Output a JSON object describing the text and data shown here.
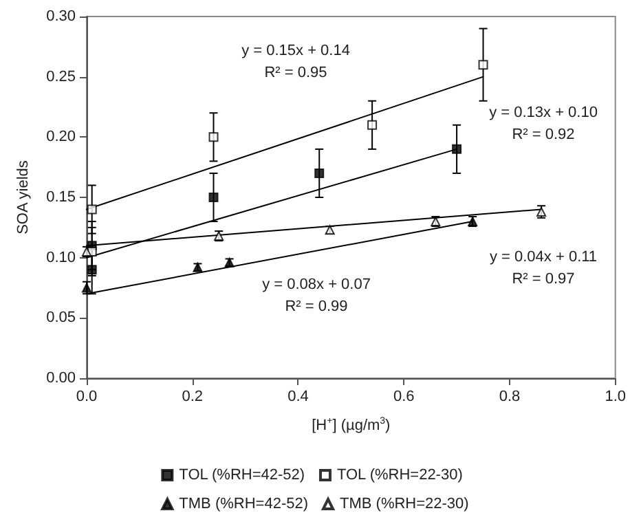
{
  "chart_data": {
    "type": "scatter",
    "xlabel": "[H$^{+}$] (µg/m$^{3}$)",
    "ylabel": "SOA yields",
    "xlim": [
      0,
      1
    ],
    "xticks": [
      {
        "value": 0,
        "label": "0.0"
      },
      {
        "value": 0.2,
        "label": "0.2"
      },
      {
        "value": 0.4,
        "label": "0.4"
      },
      {
        "value": 0.6,
        "label": "0.6"
      },
      {
        "value": 0.8,
        "label": "0.8"
      },
      {
        "value": 1,
        "label": "1.0"
      }
    ],
    "ylim": [
      0,
      0.3
    ],
    "yticks": [
      {
        "value": 0,
        "label": "0.00"
      },
      {
        "value": 0.05,
        "label": "0.05"
      },
      {
        "value": 0.1,
        "label": "0.10"
      },
      {
        "value": 0.15,
        "label": "0.15"
      },
      {
        "value": 0.2,
        "label": "0.20"
      },
      {
        "value": 0.25,
        "label": "0.25"
      },
      {
        "value": 0.3,
        "label": "0.30"
      }
    ],
    "grid": false,
    "legend": "bottom",
    "series": [
      {
        "name": "TOL (%RH=42-52)",
        "marker": "square",
        "color": "#000000",
        "x": [
          0.01,
          0.01,
          0.24,
          0.44,
          0.7
        ],
        "values": [
          0.11,
          0.09,
          0.15,
          0.17,
          0.19
        ],
        "errors": [
          0.02,
          0.02,
          0.02,
          0.02,
          0.02
        ]
      },
      {
        "name": "TOL (%RH=22-30)",
        "marker": "square",
        "color": "#ffffff",
        "x": [
          0.01,
          0.01,
          0.24,
          0.54,
          0.75
        ],
        "values": [
          0.14,
          0.105,
          0.2,
          0.21,
          0.26
        ],
        "errors": [
          0.02,
          0.02,
          0.02,
          0.02,
          0.03
        ]
      },
      {
        "name": "TMB (%RH=42-52)",
        "marker": "triangle",
        "color": "#000000",
        "x": [
          0.0,
          0.21,
          0.27,
          0.73
        ],
        "values": [
          0.075,
          0.092,
          0.096,
          0.13
        ],
        "errors": [
          0.005,
          0.003,
          0.003,
          0.004
        ]
      },
      {
        "name": "TMB (%RH=22-30)",
        "marker": "triangle",
        "color": "#ffffff",
        "x": [
          0.0,
          0.25,
          0.46,
          0.66,
          0.86
        ],
        "values": [
          0.105,
          0.118,
          0.123,
          0.13,
          0.138
        ],
        "errors": [
          0.004,
          0.004,
          0.003,
          0.004,
          0.005
        ]
      },
      {
        "type": "line",
        "marker": "none",
        "color": "#000000",
        "x": [
          0,
          0.75
        ],
        "values": [
          0.14,
          0.25
        ]
      },
      {
        "type": "line",
        "marker": "none",
        "color": "#000000",
        "x": [
          0,
          0.7
        ],
        "values": [
          0.1,
          0.19
        ]
      },
      {
        "type": "line",
        "marker": "none",
        "color": "#000000",
        "x": [
          0,
          0.86
        ],
        "values": [
          0.11,
          0.14
        ]
      },
      {
        "type": "line",
        "marker": "none",
        "color": "#000000",
        "x": [
          0,
          0.73
        ],
        "values": [
          0.07,
          0.13
        ]
      }
    ],
    "annotations": [
      "y = 0.15x + 0.14\nR² = 0.95",
      "y = 0.13x + 0.10\nR² = 0.92",
      "y = 0.04x + 0.11\nR² = 0.97",
      "y = 0.08x + 0.07\nR² = 0.99"
    ]
  }
}
